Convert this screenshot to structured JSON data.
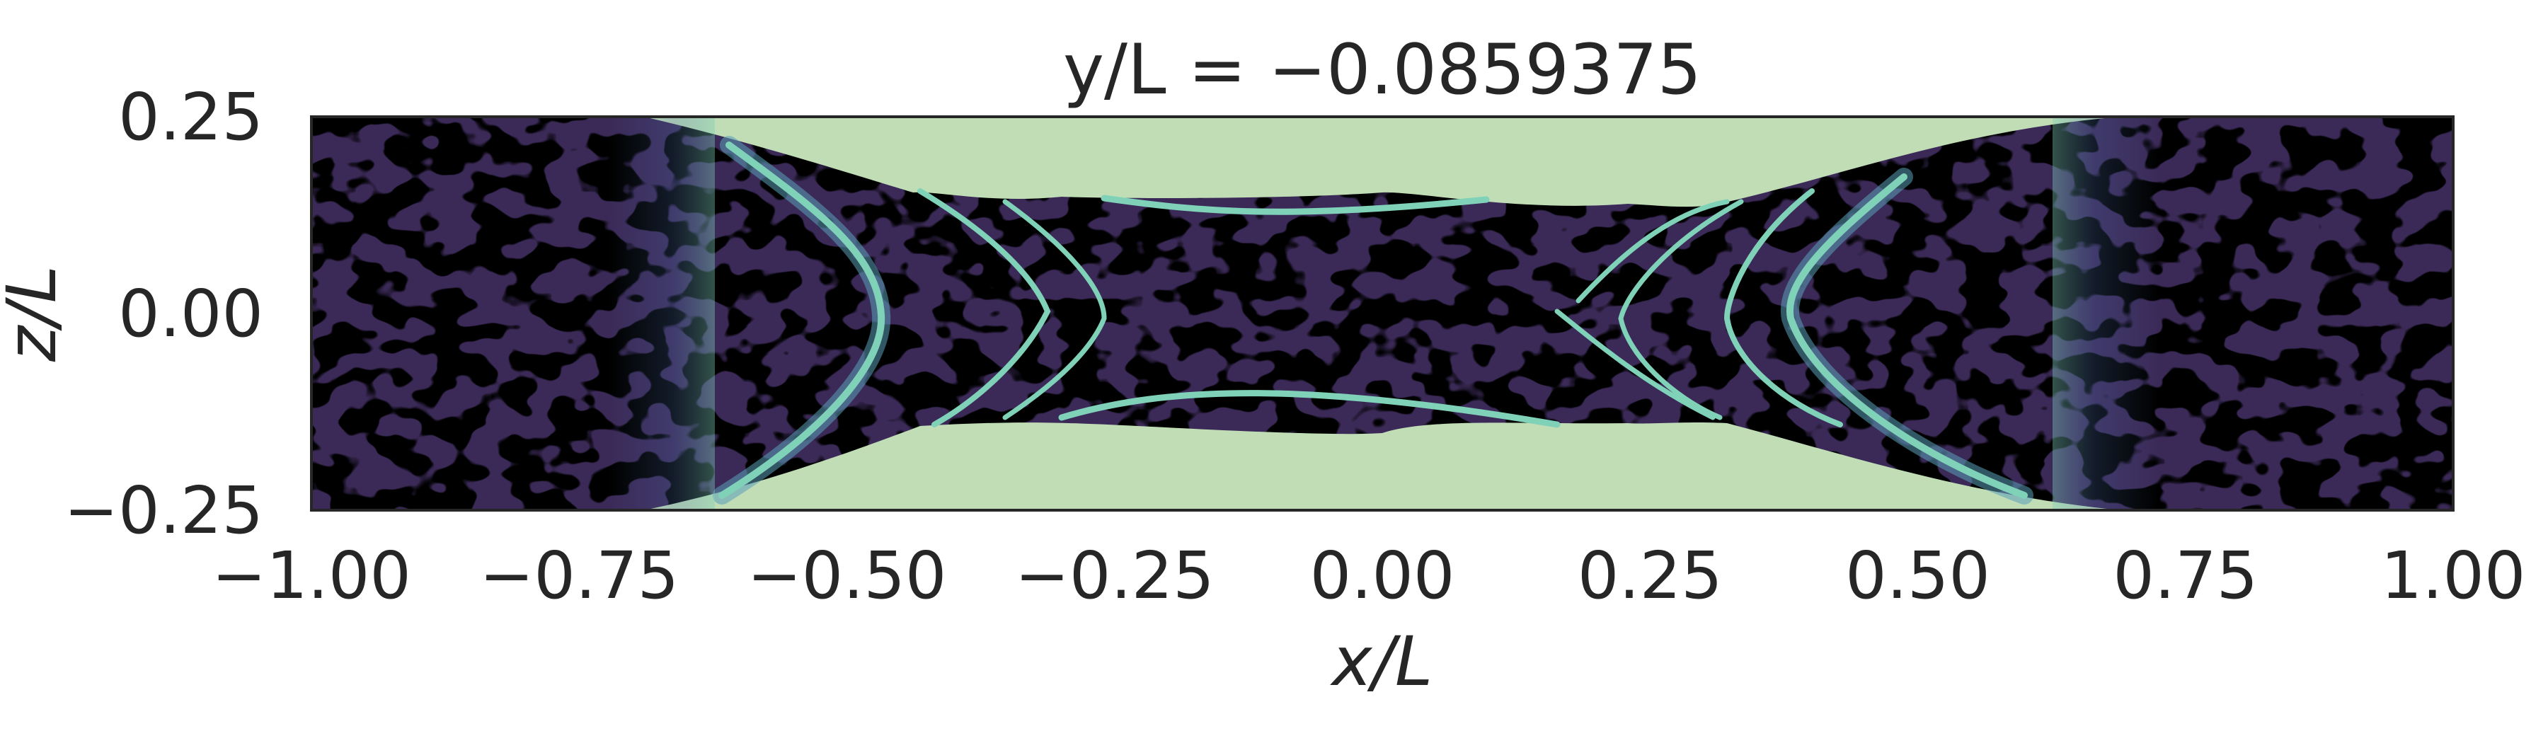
{
  "chart_data": {
    "type": "heatmap",
    "title": "y/L = −0.0859375",
    "xlabel": "x/L",
    "ylabel": "z/L",
    "xlim": [
      -1.0,
      1.0
    ],
    "ylim": [
      -0.25,
      0.25
    ],
    "x_ticks": [
      -1.0,
      -0.75,
      -0.5,
      -0.25,
      0.0,
      0.25,
      0.5,
      0.75,
      1.0
    ],
    "x_tick_labels": [
      "−1.00",
      "−0.75",
      "−0.50",
      "−0.25",
      "0.00",
      "0.25",
      "0.50",
      "0.75",
      "1.00"
    ],
    "y_ticks": [
      -0.25,
      0.0,
      0.25
    ],
    "y_tick_labels": [
      "−0.25",
      "0.00",
      "0.25"
    ],
    "grid": false,
    "colormap": [
      "#000000",
      "#3b2a58",
      "#4b3f78",
      "#4c6ea8",
      "#5a9fb8",
      "#7fd1b8",
      "#c0ddb6"
    ],
    "field_description_regions": {
      "channel_fill_value": "high",
      "channel_outer_x": [
        -0.7,
        0.7
      ],
      "channel_inner_x": [
        -0.5,
        0.5
      ],
      "channel_inner_z": [
        -0.15,
        0.15
      ]
    }
  }
}
